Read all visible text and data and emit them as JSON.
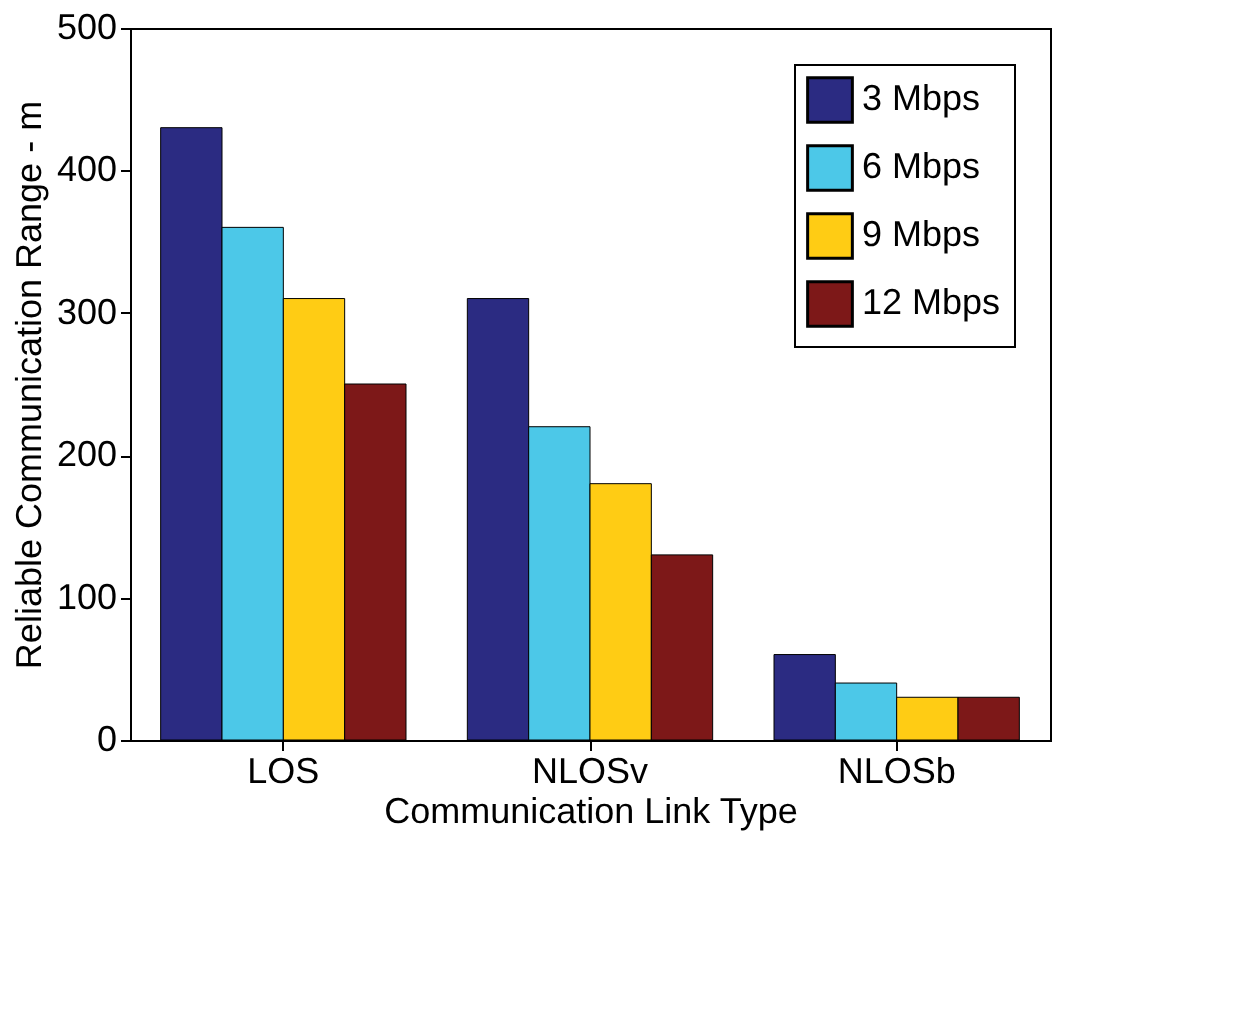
{
  "chart_data": {
    "type": "bar",
    "xlabel": "Communication Link Type",
    "ylabel": "Reliable Communication Range - m",
    "categories": [
      "LOS",
      "NLOSv",
      "NLOSb"
    ],
    "series": [
      {
        "name": "3 Mbps",
        "color": "#2b2b82",
        "values": [
          430,
          310,
          60
        ]
      },
      {
        "name": "6 Mbps",
        "color": "#4cc8e8",
        "values": [
          360,
          220,
          40
        ]
      },
      {
        "name": "9 Mbps",
        "color": "#ffcc14",
        "values": [
          310,
          180,
          30
        ]
      },
      {
        "name": "12 Mbps",
        "color": "#7d1818",
        "values": [
          250,
          130,
          30
        ]
      }
    ],
    "ylim": [
      0,
      500
    ],
    "yticks": [
      0,
      100,
      200,
      300,
      400,
      500
    ],
    "grid": false,
    "legend": "top right"
  }
}
